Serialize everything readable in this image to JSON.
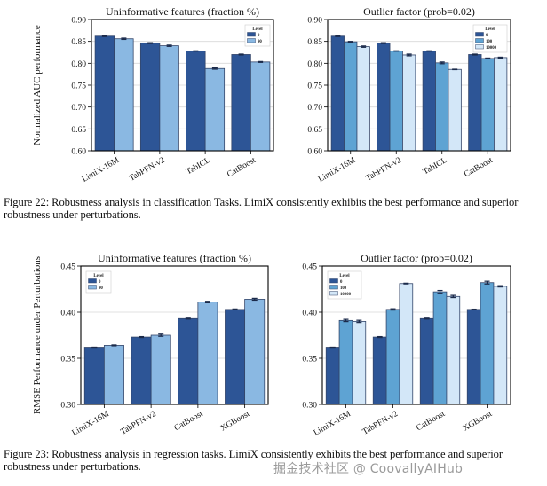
{
  "figures": [
    {
      "caption": "Figure 22: Robustness analysis in classification Tasks. LimiX consistently exhibits the best performance and superior robustness under perturbations."
    },
    {
      "caption": "Figure 23: Robustness analysis in regression tasks. LimiX consistently exhibits the best performance and superior robustness under perturbations."
    }
  ],
  "watermark": "掘金技术社区 @ CoovallyAIHub",
  "colors": {
    "level_0": "#2d5596",
    "level_90": "#8ab8e2",
    "level_100": "#5ea3d3",
    "level_10000": "#d3e7f8",
    "edge": "#34466a",
    "grid": "#d9d9d9",
    "errorbar": "#1b2a4a"
  },
  "chart_data": [
    {
      "id": "cls-uninformative",
      "type": "bar",
      "title": "Uninformative features (fraction %)",
      "xlabel": "",
      "ylabel": "Normalized AUC performance",
      "categories": [
        "LimiX-16M",
        "TabPFN-v2",
        "TabICL",
        "CatBoost"
      ],
      "ylim": [
        0.6,
        0.9
      ],
      "yticks": [
        "0.60",
        "0.65",
        "0.70",
        "0.75",
        "0.80",
        "0.85",
        "0.90"
      ],
      "grid": true,
      "legend": {
        "title": "Level",
        "placement": "top-right"
      },
      "series": [
        {
          "name": "0",
          "color_key": "level_0",
          "values": [
            0.862,
            0.846,
            0.828,
            0.82
          ],
          "errors": [
            0.001,
            0.001,
            0.0005,
            0.001
          ]
        },
        {
          "name": "90",
          "color_key": "level_90",
          "values": [
            0.856,
            0.84,
            0.788,
            0.803
          ],
          "errors": [
            0.0015,
            0.0015,
            0.0015,
            0.001
          ]
        }
      ]
    },
    {
      "id": "cls-outlier",
      "type": "bar",
      "title": "Outlier factor (prob=0.02)",
      "xlabel": "",
      "ylabel": "",
      "categories": [
        "LimiX-16M",
        "TabPFN-v2",
        "TabICL",
        "CatBoost"
      ],
      "ylim": [
        0.6,
        0.9
      ],
      "yticks": [
        "0.60",
        "0.65",
        "0.70",
        "0.75",
        "0.80",
        "0.85",
        "0.90"
      ],
      "grid": true,
      "legend": {
        "title": "Level",
        "placement": "top-right"
      },
      "series": [
        {
          "name": "0",
          "color_key": "level_0",
          "values": [
            0.862,
            0.846,
            0.828,
            0.82
          ],
          "errors": [
            0.001,
            0.001,
            0.0005,
            0.001
          ]
        },
        {
          "name": "100",
          "color_key": "level_100",
          "values": [
            0.849,
            0.828,
            0.801,
            0.811
          ],
          "errors": [
            0.001,
            0.0005,
            0.002,
            0.001
          ]
        },
        {
          "name": "10000",
          "color_key": "level_10000",
          "values": [
            0.838,
            0.819,
            0.786,
            0.813
          ],
          "errors": [
            0.0015,
            0.002,
            0.0005,
            0.001
          ]
        }
      ]
    },
    {
      "id": "reg-uninformative",
      "type": "bar",
      "title": "Uninformative features (fraction %)",
      "xlabel": "",
      "ylabel": "RMSE Performance under Perturbations",
      "categories": [
        "LimiX-16M",
        "TabPFN-v2",
        "CatBoost",
        "XGBoost"
      ],
      "ylim": [
        0.3,
        0.45
      ],
      "yticks": [
        "0.30",
        "0.35",
        "0.40",
        "0.45"
      ],
      "grid": true,
      "legend": {
        "title": "Level",
        "placement": "top-left"
      },
      "series": [
        {
          "name": "0",
          "color_key": "level_0",
          "values": [
            0.362,
            0.373,
            0.393,
            0.403
          ],
          "errors": [
            0.0,
            0.0005,
            0.0005,
            0.0005
          ]
        },
        {
          "name": "90",
          "color_key": "level_90",
          "values": [
            0.364,
            0.375,
            0.411,
            0.414
          ],
          "errors": [
            0.0005,
            0.0012,
            0.0008,
            0.001
          ]
        }
      ]
    },
    {
      "id": "reg-outlier",
      "type": "bar",
      "title": "Outlier factor (prob=0.02)",
      "xlabel": "",
      "ylabel": "",
      "categories": [
        "LimiX-16M",
        "TabPFN-v2",
        "CatBoost",
        "XGBoost"
      ],
      "ylim": [
        0.3,
        0.45
      ],
      "yticks": [
        "0.30",
        "0.35",
        "0.40",
        "0.45"
      ],
      "grid": true,
      "legend": {
        "title": "Level",
        "placement": "top-left"
      },
      "series": [
        {
          "name": "0",
          "color_key": "level_0",
          "values": [
            0.362,
            0.373,
            0.393,
            0.403
          ],
          "errors": [
            0.0,
            0.0005,
            0.0005,
            0.0003
          ]
        },
        {
          "name": "100",
          "color_key": "level_100",
          "values": [
            0.391,
            0.403,
            0.422,
            0.432
          ],
          "errors": [
            0.0012,
            0.0007,
            0.0015,
            0.0015
          ]
        },
        {
          "name": "10000",
          "color_key": "level_10000",
          "values": [
            0.39,
            0.431,
            0.417,
            0.428
          ],
          "errors": [
            0.0012,
            0.0004,
            0.0012,
            0.0007
          ]
        }
      ]
    }
  ]
}
